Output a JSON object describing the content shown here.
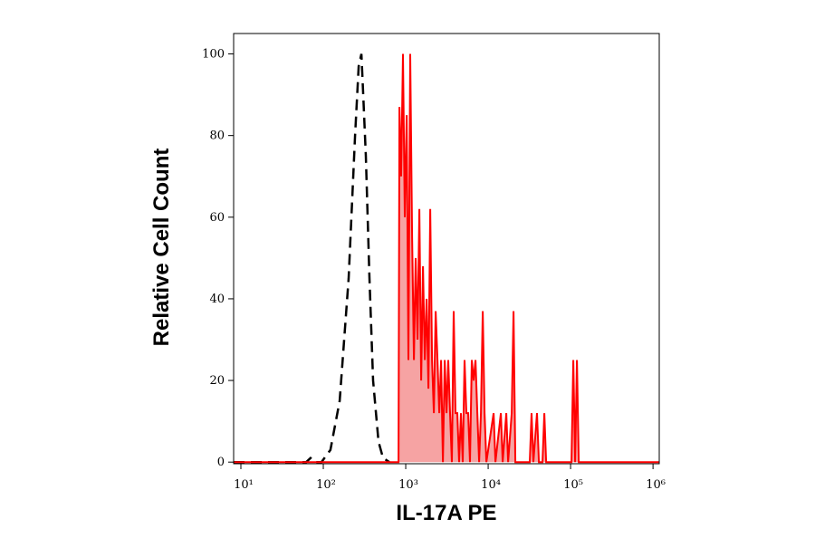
{
  "chart_data": {
    "type": "histogram-overlay",
    "x_label": "IL-17A PE",
    "y_label": "Relative Cell Count",
    "xscale": "log",
    "xlim": [
      8.17,
      1190000
    ],
    "xticks": [
      {
        "value": 10,
        "label": "10¹"
      },
      {
        "value": 100,
        "label": "10²"
      },
      {
        "value": 1000,
        "label": "10³"
      },
      {
        "value": 10000,
        "label": "10⁴"
      },
      {
        "value": 100000,
        "label": "10⁵"
      },
      {
        "value": 1000000,
        "label": "10⁶"
      }
    ],
    "ylim": [
      -0.4,
      105
    ],
    "yticks": [
      0,
      20,
      40,
      60,
      80,
      100
    ],
    "series": [
      {
        "color": "#000000",
        "dashed": true,
        "filled": false,
        "x": [
          8.17,
          62,
          70,
          78,
          95,
          122,
          158,
          203,
          243,
          269,
          290,
          305,
          328,
          363,
          402,
          468,
          531,
          634
        ],
        "values": [
          0,
          0,
          1,
          0,
          0,
          3,
          15,
          45,
          80,
          97,
          100,
          90,
          75,
          45,
          20,
          5,
          1,
          0
        ]
      },
      {
        "color": "#ff0000",
        "dashed": false,
        "filled": true,
        "fill_color": "#f6a3a3",
        "x": [
          8.17,
          817,
          838,
          881,
          927,
          975,
          1026,
          1079,
          1135,
          1194,
          1256,
          1321,
          1390,
          1462,
          1538,
          1618,
          1702,
          1790,
          1884,
          1982,
          2084,
          2193,
          2307,
          2427,
          2553,
          2685,
          2825,
          2972,
          3126,
          3281,
          3451,
          3631,
          3819,
          4018,
          4227,
          4446,
          4677,
          4920,
          5176,
          5445,
          5728,
          6026,
          6339,
          6668,
          7015,
          7379,
          7762,
          8166,
          8590,
          9036,
          9506,
          11641,
          12246,
          14256,
          14997,
          16596,
          17458,
          19320,
          20324,
          21380,
          31989,
          33651,
          35400,
          39174,
          41210,
          45604,
          47973,
          50466,
          102565,
          107895,
          113501,
          119399,
          125603,
          1190000
        ],
        "values": [
          0,
          0,
          87,
          70,
          100,
          60,
          85,
          25,
          100,
          55,
          25,
          50,
          30,
          62,
          20,
          48,
          25,
          40,
          18,
          62,
          25,
          12,
          37,
          25,
          12,
          25,
          0,
          25,
          12,
          25,
          12,
          0,
          37,
          12,
          12,
          0,
          12,
          0,
          25,
          12,
          12,
          0,
          25,
          20,
          25,
          12,
          0,
          12,
          37,
          12,
          0,
          12,
          0,
          12,
          0,
          12,
          0,
          12,
          37,
          0,
          0,
          12,
          0,
          12,
          0,
          0,
          12,
          0,
          0,
          25,
          0,
          25,
          0,
          0
        ]
      }
    ]
  }
}
